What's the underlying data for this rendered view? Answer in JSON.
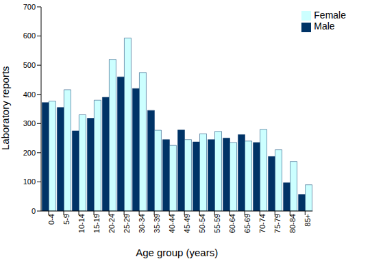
{
  "chart_data": {
    "type": "bar",
    "x_label": "Age group (years)",
    "y_label": "Laboratory reports",
    "categories": [
      "0-4",
      "5-9",
      "10-14",
      "15-19",
      "20-24",
      "25-29",
      "30-34",
      "35-39",
      "40-44",
      "45-49",
      "50-54",
      "55-59",
      "60-64",
      "65-69",
      "70-74",
      "75-79",
      "80-84",
      "85+"
    ],
    "series": [
      {
        "name": "Male",
        "color": "#003366",
        "values": [
          372,
          355,
          275,
          318,
          390,
          460,
          420,
          345,
          245,
          278,
          237,
          245,
          250,
          262,
          235,
          187,
          97,
          57
        ]
      },
      {
        "name": "Female",
        "color": "#ccffff",
        "values": [
          377,
          416,
          330,
          380,
          520,
          593,
          475,
          277,
          225,
          245,
          265,
          273,
          235,
          240,
          280,
          210,
          170,
          90
        ]
      }
    ],
    "ylim": [
      0,
      700
    ],
    "yticks": [
      0,
      100,
      200,
      300,
      400,
      500,
      600,
      700
    ],
    "grid": false,
    "legend": "upper right"
  }
}
